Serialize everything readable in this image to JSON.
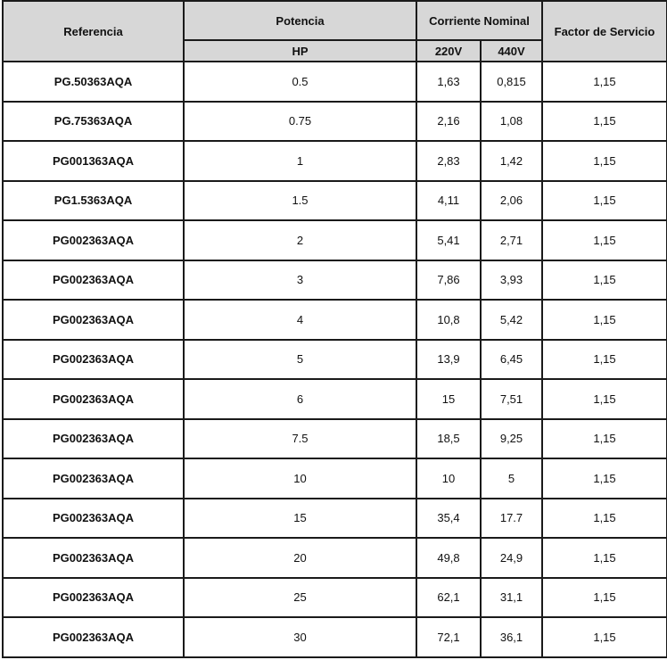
{
  "headers": {
    "referencia": "Referencia",
    "potencia": "Potencia",
    "potencia_unit": "HP",
    "corriente": "Corriente Nominal",
    "v220": "220V",
    "v440": "440V",
    "factor": "Factor de Servicio"
  },
  "rows": [
    {
      "ref": "PG.50363AQA",
      "hp": "0.5",
      "v220": "1,63",
      "v440": "0,815",
      "fs": "1,15"
    },
    {
      "ref": "PG.75363AQA",
      "hp": "0.75",
      "v220": "2,16",
      "v440": "1,08",
      "fs": "1,15"
    },
    {
      "ref": "PG001363AQA",
      "hp": "1",
      "v220": "2,83",
      "v440": "1,42",
      "fs": "1,15"
    },
    {
      "ref": "PG1.5363AQA",
      "hp": "1.5",
      "v220": "4,11",
      "v440": "2,06",
      "fs": "1,15"
    },
    {
      "ref": "PG002363AQA",
      "hp": "2",
      "v220": "5,41",
      "v440": "2,71",
      "fs": "1,15"
    },
    {
      "ref": "PG002363AQA",
      "hp": "3",
      "v220": "7,86",
      "v440": "3,93",
      "fs": "1,15"
    },
    {
      "ref": "PG002363AQA",
      "hp": "4",
      "v220": "10,8",
      "v440": "5,42",
      "fs": "1,15"
    },
    {
      "ref": "PG002363AQA",
      "hp": "5",
      "v220": "13,9",
      "v440": "6,45",
      "fs": "1,15"
    },
    {
      "ref": "PG002363AQA",
      "hp": "6",
      "v220": "15",
      "v440": "7,51",
      "fs": "1,15"
    },
    {
      "ref": "PG002363AQA",
      "hp": "7.5",
      "v220": "18,5",
      "v440": "9,25",
      "fs": "1,15"
    },
    {
      "ref": "PG002363AQA",
      "hp": "10",
      "v220": "10",
      "v440": "5",
      "fs": "1,15"
    },
    {
      "ref": "PG002363AQA",
      "hp": "15",
      "v220": "35,4",
      "v440": "17.7",
      "fs": "1,15"
    },
    {
      "ref": "PG002363AQA",
      "hp": "20",
      "v220": "49,8",
      "v440": "24,9",
      "fs": "1,15"
    },
    {
      "ref": "PG002363AQA",
      "hp": "25",
      "v220": "62,1",
      "v440": "31,1",
      "fs": "1,15"
    },
    {
      "ref": "PG002363AQA",
      "hp": "30",
      "v220": "72,1",
      "v440": "36,1",
      "fs": "1,15"
    }
  ]
}
